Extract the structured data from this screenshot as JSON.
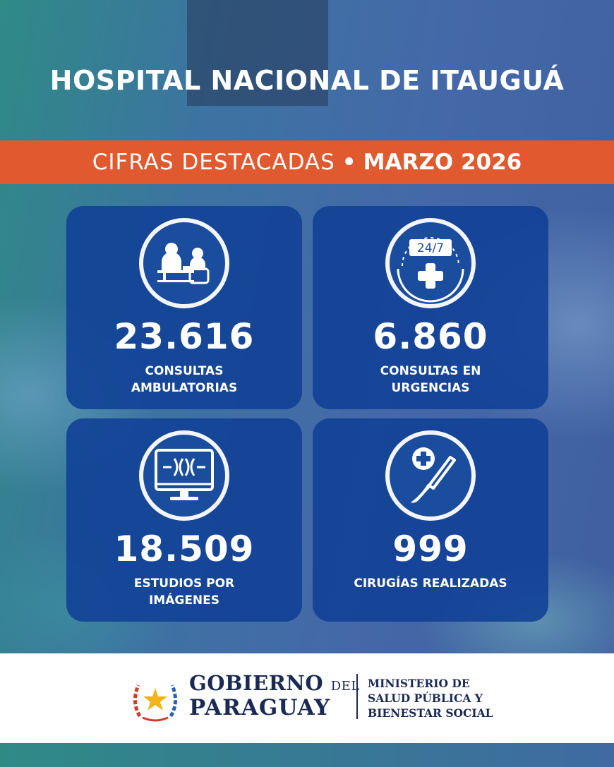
{
  "header": {
    "title": "HOSPITAL NACIONAL DE ITAUGUÁ"
  },
  "band": {
    "prefix": "CIFRAS DESTACADAS",
    "separator": "•",
    "period": "MARZO 2026"
  },
  "stats": [
    {
      "icon": "outpatient-consultation-icon",
      "value": "23.616",
      "label": "CONSULTAS\nAMBULATORIAS"
    },
    {
      "icon": "emergency-24-7-icon",
      "badge": "24/7",
      "value": "6.860",
      "label": "CONSULTAS EN\nURGENCIAS"
    },
    {
      "icon": "imaging-monitor-icon",
      "value": "18.509",
      "label": "ESTUDIOS POR\nIMÁGENES"
    },
    {
      "icon": "scalpel-surgery-icon",
      "value": "999",
      "label": "CIRUGÍAS REALIZADAS"
    }
  ],
  "footer": {
    "gobierno": "GOBIERNO",
    "del": "DEL",
    "paraguay": "PARAGUAY",
    "ministry": "MINISTERIO DE\nSALUD PÚBLICA Y\nBIENESTAR SOCIAL"
  },
  "colors": {
    "band": "#e1592f",
    "card": "#10409a",
    "text": "#ffffff",
    "footer_text": "#1a2a55"
  }
}
